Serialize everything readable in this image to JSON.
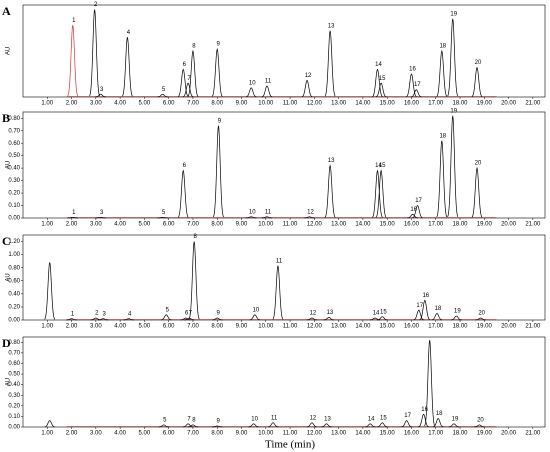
{
  "chart_data": {
    "type": "chromatogram",
    "x_label": "Time (min)",
    "xlim": [
      0,
      21.5
    ],
    "line_color": "#000000",
    "baseline_color": "#d04040",
    "xticks": [
      {
        "value": 1,
        "label": "1.00"
      },
      {
        "value": 2,
        "label": "2.00"
      },
      {
        "value": 3,
        "label": "3.00"
      },
      {
        "value": 4,
        "label": "4.00"
      },
      {
        "value": 5,
        "label": "5.00"
      },
      {
        "value": 6,
        "label": "6.00"
      },
      {
        "value": 7,
        "label": "7.00"
      },
      {
        "value": 8,
        "label": "8.00"
      },
      {
        "value": 9,
        "label": "9.00"
      },
      {
        "value": 10,
        "label": "10.00"
      },
      {
        "value": 11,
        "label": "11.00"
      },
      {
        "value": 12,
        "label": "12.00"
      },
      {
        "value": 13,
        "label": "13.00"
      },
      {
        "value": 14,
        "label": "14.00"
      },
      {
        "value": 15,
        "label": "15.00"
      },
      {
        "value": 16,
        "label": "16.00"
      },
      {
        "value": 17,
        "label": "17.00"
      },
      {
        "value": 18,
        "label": "18.00"
      },
      {
        "value": 19,
        "label": "19.00"
      },
      {
        "value": 20,
        "label": "20.00"
      },
      {
        "value": 21,
        "label": "21.00"
      }
    ],
    "panels": [
      {
        "label": "A",
        "y_label": "AU",
        "ylim": [
          0,
          1
        ],
        "yticks": [],
        "peaks": [
          {
            "label": "1",
            "x": 2.05,
            "height": 0.78,
            "color": "#e03030"
          },
          {
            "label": "2",
            "x": 2.95,
            "height": 0.95
          },
          {
            "label": "3",
            "x": 3.2,
            "height": 0.03
          },
          {
            "label": "4",
            "x": 4.3,
            "height": 0.65
          },
          {
            "label": "5",
            "x": 5.75,
            "height": 0.03
          },
          {
            "label": "6",
            "x": 6.6,
            "height": 0.3
          },
          {
            "label": "7",
            "x": 6.8,
            "height": 0.15
          },
          {
            "label": "8",
            "x": 7.0,
            "height": 0.5
          },
          {
            "label": "9",
            "x": 8.0,
            "height": 0.52
          },
          {
            "label": "10",
            "x": 9.4,
            "height": 0.1
          },
          {
            "label": "11",
            "x": 10.05,
            "height": 0.12
          },
          {
            "label": "12",
            "x": 11.7,
            "height": 0.18
          },
          {
            "label": "13",
            "x": 12.65,
            "height": 0.72
          },
          {
            "label": "14",
            "x": 14.6,
            "height": 0.3
          },
          {
            "label": "15",
            "x": 14.75,
            "height": 0.15
          },
          {
            "label": "16",
            "x": 16.0,
            "height": 0.25
          },
          {
            "label": "17",
            "x": 16.2,
            "height": 0.08
          },
          {
            "label": "18",
            "x": 17.25,
            "height": 0.5
          },
          {
            "label": "19",
            "x": 17.7,
            "height": 0.85
          },
          {
            "label": "20",
            "x": 18.7,
            "height": 0.32
          }
        ]
      },
      {
        "label": "B",
        "y_label": "AU",
        "ylim": [
          0,
          0.85
        ],
        "yticks": [
          {
            "value": 0,
            "label": "0.00"
          },
          {
            "value": 0.1,
            "label": "0.10"
          },
          {
            "value": 0.2,
            "label": "0.20"
          },
          {
            "value": 0.3,
            "label": "0.30"
          },
          {
            "value": 0.4,
            "label": "0.40"
          },
          {
            "value": 0.5,
            "label": "0.50"
          },
          {
            "value": 0.6,
            "label": "0.60"
          },
          {
            "value": 0.7,
            "label": "0.70"
          },
          {
            "value": 0.8,
            "label": "0.80"
          }
        ],
        "peaks": [
          {
            "label": "1",
            "x": 2.05,
            "height": 0.005
          },
          {
            "label": "3",
            "x": 3.2,
            "height": 0.005
          },
          {
            "label": "5",
            "x": 5.75,
            "height": 0.005
          },
          {
            "label": "6",
            "x": 6.6,
            "height": 0.38
          },
          {
            "label": "9",
            "x": 8.05,
            "height": 0.74
          },
          {
            "label": "10",
            "x": 9.4,
            "height": 0.01
          },
          {
            "label": "11",
            "x": 10.05,
            "height": 0.01
          },
          {
            "label": "12",
            "x": 11.8,
            "height": 0.01
          },
          {
            "label": "13",
            "x": 12.65,
            "height": 0.42
          },
          {
            "label": "14",
            "x": 14.6,
            "height": 0.38
          },
          {
            "label": "15",
            "x": 14.75,
            "height": 0.38
          },
          {
            "label": "16",
            "x": 16.05,
            "height": 0.03
          },
          {
            "label": "17",
            "x": 16.25,
            "height": 0.1
          },
          {
            "label": "18",
            "x": 17.25,
            "height": 0.62
          },
          {
            "label": "19",
            "x": 17.7,
            "height": 0.82
          },
          {
            "label": "20",
            "x": 18.7,
            "height": 0.4
          }
        ]
      },
      {
        "label": "C",
        "y_label": "AU",
        "ylim": [
          0,
          1.3
        ],
        "yticks": [
          {
            "value": 0,
            "label": "0.00"
          },
          {
            "value": 0.2,
            "label": "0.20"
          },
          {
            "value": 0.4,
            "label": "0.40"
          },
          {
            "value": 0.6,
            "label": "0.60"
          },
          {
            "value": 0.8,
            "label": "0.80"
          },
          {
            "value": 1,
            "label": "1.00"
          },
          {
            "value": 1.2,
            "label": "1.20"
          }
        ],
        "peaks": [
          {
            "label": null,
            "x": 1.1,
            "height": 0.88
          },
          {
            "label": "1",
            "x": 2.0,
            "height": 0.02
          },
          {
            "label": "2",
            "x": 3.0,
            "height": 0.03
          },
          {
            "label": "3",
            "x": 3.3,
            "height": 0.02
          },
          {
            "label": "4",
            "x": 4.35,
            "height": 0.02
          },
          {
            "label": "5",
            "x": 5.9,
            "height": 0.08
          },
          {
            "label": "6",
            "x": 6.7,
            "height": 0.03
          },
          {
            "label": "7",
            "x": 6.85,
            "height": 0.03
          },
          {
            "label": "8",
            "x": 7.05,
            "height": 1.2
          },
          {
            "label": "9",
            "x": 8.0,
            "height": 0.03
          },
          {
            "label": "10",
            "x": 9.55,
            "height": 0.08
          },
          {
            "label": "11",
            "x": 10.5,
            "height": 0.83
          },
          {
            "label": "12",
            "x": 11.9,
            "height": 0.03
          },
          {
            "label": "13",
            "x": 12.6,
            "height": 0.04
          },
          {
            "label": "14",
            "x": 14.5,
            "height": 0.03
          },
          {
            "label": "15",
            "x": 14.8,
            "height": 0.05
          },
          {
            "label": "17",
            "x": 16.3,
            "height": 0.15
          },
          {
            "label": "16",
            "x": 16.55,
            "height": 0.3
          },
          {
            "label": "18",
            "x": 17.05,
            "height": 0.1
          },
          {
            "label": "19",
            "x": 17.85,
            "height": 0.06
          },
          {
            "label": "20",
            "x": 18.85,
            "height": 0.03
          }
        ]
      },
      {
        "label": "D",
        "y_label": "AU",
        "ylim": [
          0,
          0.85
        ],
        "yticks": [
          {
            "value": 0,
            "label": "0.00"
          },
          {
            "value": 0.1,
            "label": "0.10"
          },
          {
            "value": 0.2,
            "label": "0.20"
          },
          {
            "value": 0.3,
            "label": "0.30"
          },
          {
            "value": 0.4,
            "label": "0.40"
          },
          {
            "value": 0.5,
            "label": "0.50"
          },
          {
            "value": 0.6,
            "label": "0.60"
          },
          {
            "value": 0.7,
            "label": "0.70"
          },
          {
            "value": 0.8,
            "label": "0.80"
          }
        ],
        "peaks": [
          {
            "label": null,
            "x": 1.1,
            "height": 0.06
          },
          {
            "label": "5",
            "x": 5.8,
            "height": 0.02
          },
          {
            "label": "7",
            "x": 6.8,
            "height": 0.03
          },
          {
            "label": "8",
            "x": 7.0,
            "height": 0.02
          },
          {
            "label": "9",
            "x": 8.0,
            "height": 0.01
          },
          {
            "label": "10",
            "x": 9.5,
            "height": 0.03
          },
          {
            "label": "11",
            "x": 10.3,
            "height": 0.04
          },
          {
            "label": "12",
            "x": 11.9,
            "height": 0.04
          },
          {
            "label": "13",
            "x": 12.5,
            "height": 0.03
          },
          {
            "label": "14",
            "x": 14.3,
            "height": 0.03
          },
          {
            "label": "15",
            "x": 14.8,
            "height": 0.04
          },
          {
            "label": "17",
            "x": 15.8,
            "height": 0.06
          },
          {
            "label": "16",
            "x": 16.5,
            "height": 0.12
          },
          {
            "label": null,
            "x": 16.75,
            "height": 0.82
          },
          {
            "label": "18",
            "x": 17.1,
            "height": 0.08
          },
          {
            "label": "19",
            "x": 17.75,
            "height": 0.03
          },
          {
            "label": "20",
            "x": 18.8,
            "height": 0.02
          }
        ]
      }
    ]
  }
}
